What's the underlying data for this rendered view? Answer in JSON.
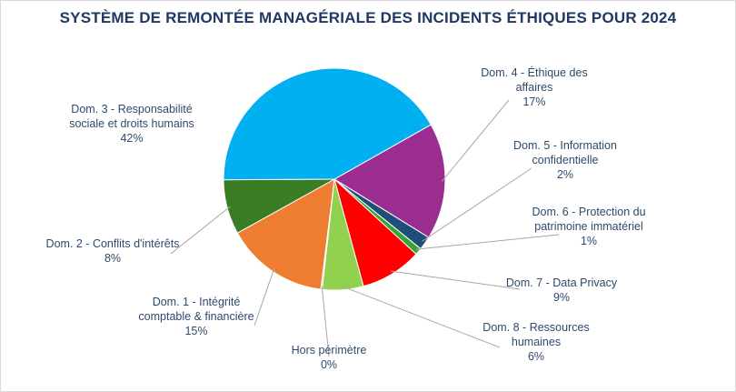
{
  "chart_data": {
    "type": "pie",
    "title": "SYSTÈME DE REMONTÉE MANAGÉRIALE DES INCIDENTS ÉTHIQUES POUR 2024",
    "slices": [
      {
        "label_lines": [
          "Dom. 4 - Éthique des",
          "affaires"
        ],
        "percent_label": "17%",
        "value": 17,
        "color": "#9b2d91"
      },
      {
        "label_lines": [
          "Dom. 5 - Information",
          "confidentielle"
        ],
        "percent_label": "2%",
        "value": 2,
        "color": "#1f4e79"
      },
      {
        "label_lines": [
          "Dom. 6 - Protection du",
          "patrimoine immatériel"
        ],
        "percent_label": "1%",
        "value": 1,
        "color": "#3aa335"
      },
      {
        "label_lines": [
          "Dom. 7 - Data Privacy"
        ],
        "percent_label": "9%",
        "value": 9,
        "color": "#ff0000"
      },
      {
        "label_lines": [
          "Dom. 8 - Ressources",
          "humaines"
        ],
        "percent_label": "6%",
        "value": 6,
        "color": "#92d050"
      },
      {
        "label_lines": [
          "Hors périmètre"
        ],
        "percent_label": "0%",
        "value": 0.2,
        "color": "#c0a0d0"
      },
      {
        "label_lines": [
          "Dom. 1 - Intégrité",
          "comptable & financière"
        ],
        "percent_label": "15%",
        "value": 15,
        "color": "#ed7d31"
      },
      {
        "label_lines": [
          "Dom. 2 - Conflits d'intérêts"
        ],
        "percent_label": "8%",
        "value": 8,
        "color": "#3a7d24"
      },
      {
        "label_lines": [
          "Dom. 3 - Responsabilité",
          "sociale et droits humains"
        ],
        "percent_label": "42%",
        "value": 42,
        "color": "#00b0f0"
      }
    ],
    "start_angle_deg": 60.6,
    "leader_line_color": "#a6a6a6"
  }
}
